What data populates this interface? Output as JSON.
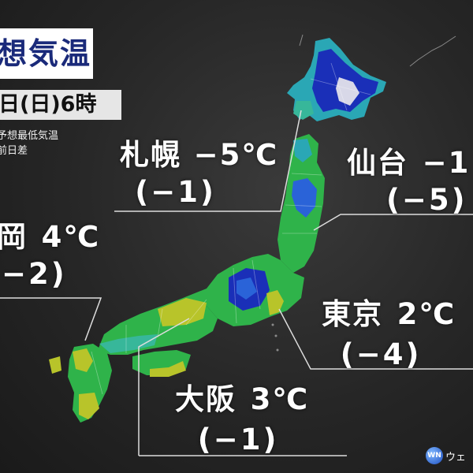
{
  "title": "想気温",
  "date": "日(日)6時",
  "legend": {
    "line1": "予想最低気温",
    "line2": "前日差"
  },
  "cities": [
    {
      "key": "sapporo",
      "name": "札幌",
      "temp": "−5℃",
      "diff": "(−1)"
    },
    {
      "key": "sendai",
      "name": "仙台",
      "temp": "−1",
      "diff": "(−5)"
    },
    {
      "key": "fukuoka",
      "name": "岡",
      "temp": "4℃",
      "diff": "−2)"
    },
    {
      "key": "tokyo",
      "name": "東京",
      "temp": "2℃",
      "diff": "(−4)"
    },
    {
      "key": "osaka",
      "name": "大阪",
      "temp": "3℃",
      "diff": "(−1)"
    }
  ],
  "logo": {
    "text": "ウェ",
    "mark": "WN"
  },
  "colors": {
    "cold_blue": "#1a2fb8",
    "cool_cyan": "#2aa7b5",
    "mild_green": "#2fb34a",
    "warm_yellow": "#b8c42a",
    "snow_white": "#d8d8e8",
    "leader_line": "#dddddd"
  }
}
